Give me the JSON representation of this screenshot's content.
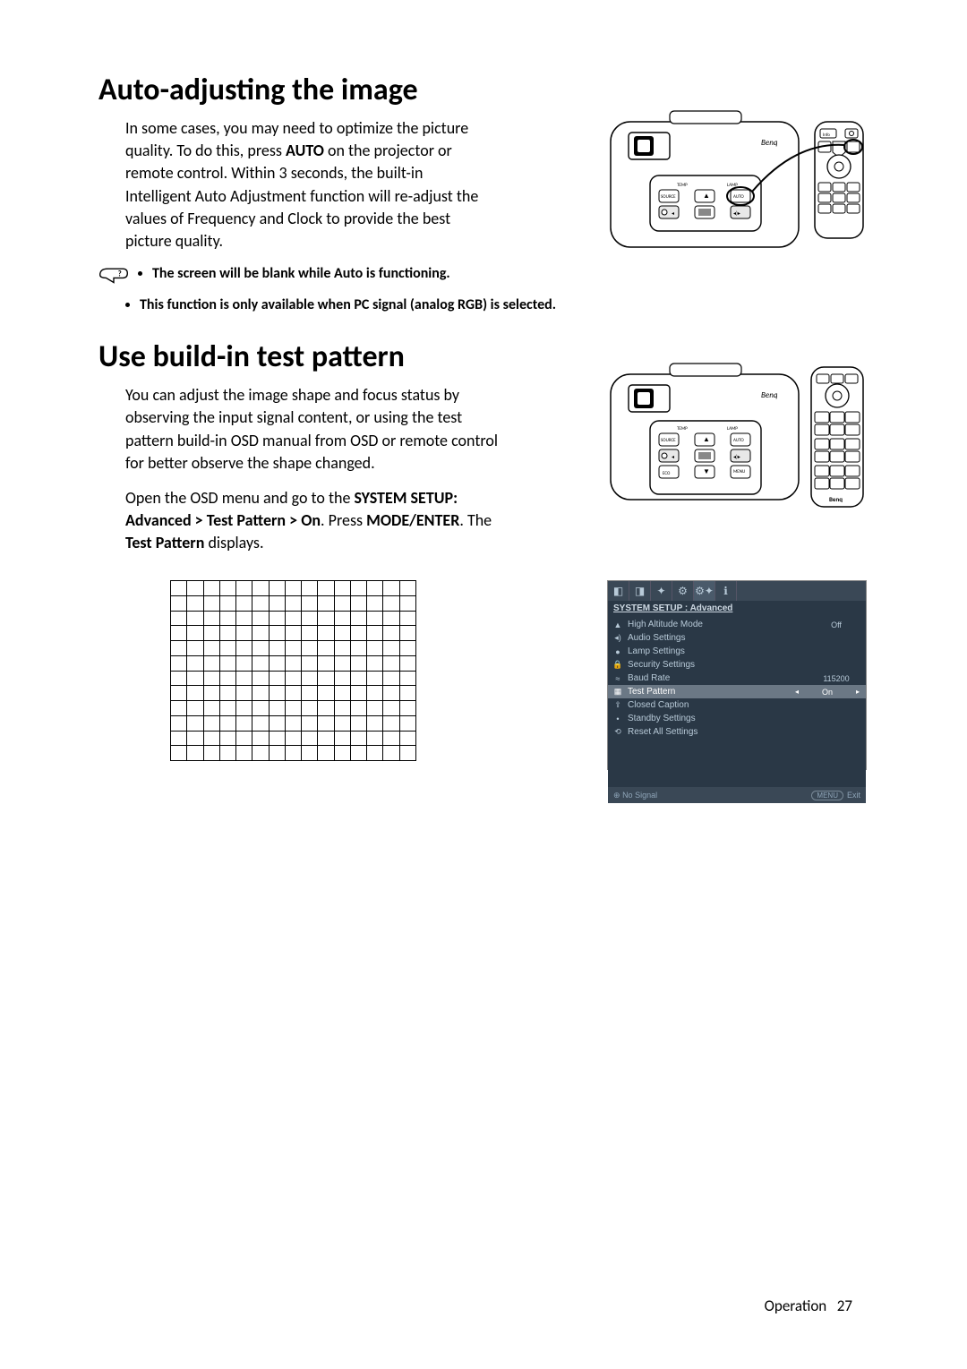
{
  "section1": {
    "heading": "Auto-adjusting the image",
    "paragraph_parts": {
      "p1a": "In some cases, you may need to optimize the picture quality. To do this, press ",
      "p1b": "AUTO",
      "p1c": " on the projector or remote control. Within 3 seconds, the built-in Intelligent Auto Adjustment function will re-adjust the values of Frequency and Clock to provide the best picture quality."
    },
    "note1": "The screen will be blank while Auto is functioning.",
    "note2": "This function is only available when PC signal (analog RGB) is selected."
  },
  "section2": {
    "heading": "Use build-in test pattern",
    "paragraph1": "You can adjust the image shape and focus status by observing the input signal content, or using the test pattern build-in OSD manual from OSD or remote control for better observe the shape changed.",
    "paragraph2_parts": {
      "a": "Open the OSD menu and go to the ",
      "b": "SYSTEM SETUP: Advanced > Test Pattern > On",
      "c": ". Press ",
      "d": "MODE/ENTER",
      "e": ". The ",
      "f": "Test Pattern",
      "g": " displays."
    }
  },
  "osd": {
    "title": "SYSTEM SETUP : Advanced",
    "rows": [
      {
        "icon": "▲",
        "label": "High Altitude Mode",
        "value": "Off",
        "selected": false,
        "arrows": false
      },
      {
        "icon": "◂)",
        "label": "Audio Settings",
        "value": "",
        "selected": false,
        "arrows": false
      },
      {
        "icon": "●",
        "label": "Lamp Settings",
        "value": "",
        "selected": false,
        "arrows": false
      },
      {
        "icon": "🔒",
        "label": "Security Settings",
        "value": "",
        "selected": false,
        "arrows": false
      },
      {
        "icon": "≈",
        "label": "Baud Rate",
        "value": "115200",
        "selected": false,
        "arrows": false
      },
      {
        "icon": "▦",
        "label": "Test Pattern",
        "value": "On",
        "selected": true,
        "arrows": true
      },
      {
        "icon": "⇪",
        "label": "Closed Caption",
        "value": "",
        "selected": false,
        "arrows": false
      },
      {
        "icon": "•",
        "label": "Standby Settings",
        "value": "",
        "selected": false,
        "arrows": false
      },
      {
        "icon": "⟲",
        "label": "Reset All Settings",
        "value": "",
        "selected": false,
        "arrows": false
      }
    ],
    "footer_status_icon": "⊕",
    "footer_status": "No Signal",
    "footer_menu": "MENU",
    "footer_exit": "Exit",
    "colors": {
      "bg": "#2a3846",
      "tab_bg": "#3a4856",
      "selected_bg": "#6b7885",
      "text": "#b8cad8"
    }
  },
  "footer": {
    "label": "Operation",
    "page": "27"
  },
  "test_grid": {
    "rows": 12,
    "cols": 15
  }
}
